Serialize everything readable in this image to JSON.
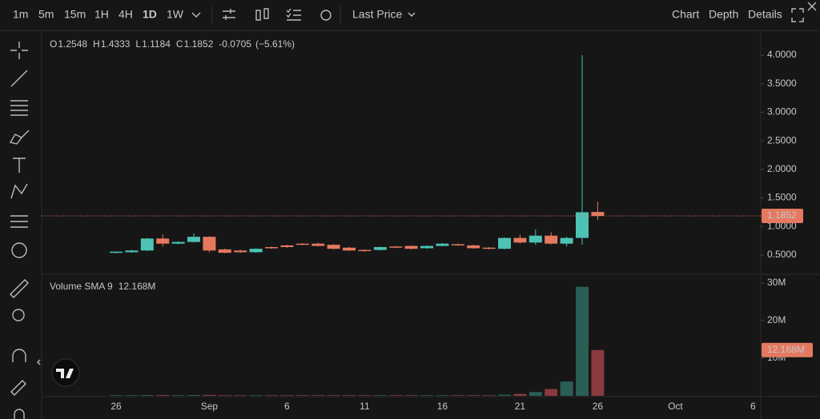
{
  "toolbar": {
    "timeframes": [
      "1m",
      "5m",
      "15m",
      "1H",
      "4H",
      "1D",
      "1W"
    ],
    "selected": "1D",
    "price_type": "Last Price",
    "tabs": [
      "Chart",
      "Depth",
      "Details"
    ],
    "active_tab": "Chart"
  },
  "legend": {
    "o": "O",
    "h": "H",
    "l": "L",
    "c": "C",
    "change": "-0.0705",
    "change_pct": "(−5.61%)"
  },
  "chart_data": [
    {
      "type": "candlestick",
      "up_color": "#4cc3b5",
      "down_color": "#e5795f",
      "categories": [
        "26",
        null,
        null,
        null,
        null,
        null,
        "Sep",
        null,
        null,
        null,
        null,
        "6",
        null,
        null,
        null,
        null,
        "11",
        null,
        null,
        null,
        null,
        "16",
        null,
        null,
        null,
        null,
        "21",
        null,
        null,
        null,
        null,
        "26",
        null,
        null,
        null,
        null,
        "Oct",
        null,
        null,
        null,
        null,
        "6"
      ],
      "open": [
        0.54,
        0.55,
        0.58,
        0.79,
        0.7,
        0.73,
        0.82,
        0.6,
        0.58,
        0.55,
        0.64,
        0.67,
        0.7,
        0.7,
        0.68,
        0.63,
        0.59,
        0.59,
        0.65,
        0.66,
        0.62,
        0.66,
        0.69,
        0.67,
        0.63,
        0.61,
        0.8,
        0.72,
        0.84,
        0.7,
        0.8,
        1.2548,
        null,
        null,
        null,
        null,
        null,
        null,
        null,
        null,
        null,
        null
      ],
      "high": [
        0.56,
        0.59,
        0.8,
        0.86,
        0.74,
        0.88,
        0.83,
        0.61,
        0.59,
        0.62,
        0.65,
        0.68,
        0.71,
        0.72,
        0.69,
        0.64,
        0.6,
        0.65,
        0.66,
        0.67,
        0.67,
        0.71,
        0.7,
        0.68,
        0.64,
        0.81,
        0.86,
        0.95,
        0.9,
        0.82,
        4.0,
        1.4333,
        null,
        null,
        null,
        null,
        null,
        null,
        null,
        null,
        null,
        null
      ],
      "low": [
        0.53,
        0.54,
        0.57,
        0.65,
        0.69,
        0.72,
        0.55,
        0.53,
        0.54,
        0.54,
        0.61,
        0.63,
        0.67,
        0.65,
        0.6,
        0.57,
        0.56,
        0.58,
        0.62,
        0.6,
        0.61,
        0.65,
        0.66,
        0.61,
        0.6,
        0.6,
        0.7,
        0.68,
        0.69,
        0.65,
        0.68,
        1.1184,
        null,
        null,
        null,
        null,
        null,
        null,
        null,
        null,
        null,
        null
      ],
      "close": [
        0.56,
        0.58,
        0.79,
        0.7,
        0.73,
        0.82,
        0.58,
        0.54,
        0.55,
        0.61,
        0.62,
        0.64,
        0.68,
        0.66,
        0.61,
        0.58,
        0.57,
        0.64,
        0.63,
        0.61,
        0.66,
        0.7,
        0.67,
        0.62,
        0.61,
        0.8,
        0.72,
        0.84,
        0.7,
        0.8,
        1.25,
        1.1852,
        null,
        null,
        null,
        null,
        null,
        null,
        null,
        null,
        null,
        null
      ],
      "ylim": [
        0.178,
        4.238
      ],
      "yticks": [
        {
          "value": 0.5,
          "label": "0.5000"
        },
        {
          "value": 1.0,
          "label": "1.0000"
        },
        {
          "value": 1.5,
          "label": "1.5000"
        },
        {
          "value": 2.0,
          "label": "2.0000"
        },
        {
          "value": 2.5,
          "label": "2.5000"
        },
        {
          "value": 3.0,
          "label": "3.0000"
        },
        {
          "value": 3.5,
          "label": "3.5000"
        },
        {
          "value": 4.0,
          "label": "4.0000"
        }
      ]
    },
    {
      "type": "bar",
      "title": "Volume SMA 9",
      "up_color": "#2a5f55",
      "down_color": "#8a3a3e",
      "values": [
        150000,
        150000,
        200000,
        200000,
        150000,
        200000,
        250000,
        150000,
        150000,
        150000,
        150000,
        150000,
        150000,
        150000,
        150000,
        150000,
        150000,
        150000,
        150000,
        150000,
        150000,
        150000,
        150000,
        150000,
        150000,
        300000,
        500000,
        1000000,
        1800000,
        3800000,
        29000000,
        12168000,
        null,
        null,
        null,
        null,
        null,
        null,
        null,
        null,
        null,
        null
      ],
      "sma": {
        "value": 12168000,
        "label": "12.168M"
      },
      "ylim": [
        0,
        31900000
      ],
      "yticks": [
        {
          "value": 10000000,
          "label": "10M"
        },
        {
          "value": 20000000,
          "label": "20M"
        },
        {
          "value": 30000000,
          "label": "30M"
        }
      ]
    }
  ]
}
